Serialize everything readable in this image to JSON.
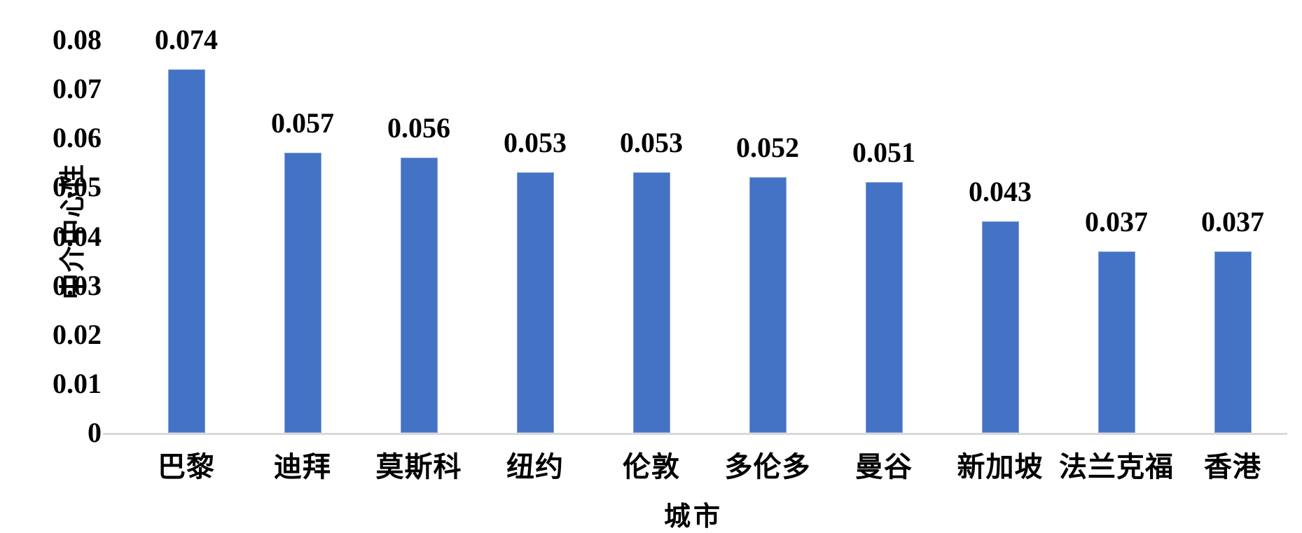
{
  "chart_data": {
    "type": "bar",
    "title": "",
    "categories": [
      "巴黎",
      "迪拜",
      "莫斯科",
      "纽约",
      "伦敦",
      "多伦多",
      "曼谷",
      "新加坡",
      "法兰克福",
      "香港"
    ],
    "values": [
      0.074,
      0.057,
      0.056,
      0.053,
      0.053,
      0.052,
      0.051,
      0.043,
      0.037,
      0.037
    ],
    "data_labels": [
      "0.074",
      "0.057",
      "0.056",
      "0.053",
      "0.053",
      "0.052",
      "0.051",
      "0.043",
      "0.037",
      "0.037"
    ],
    "xlabel": "城市",
    "ylabel": "中介中心性",
    "ylim": [
      0,
      0.08
    ],
    "yticks": [
      {
        "label": "0",
        "value": 0
      },
      {
        "label": "0.01",
        "value": 0.01
      },
      {
        "label": "0.02",
        "value": 0.02
      },
      {
        "label": "0.03",
        "value": 0.03
      },
      {
        "label": "0.04",
        "value": 0.04
      },
      {
        "label": "0.05",
        "value": 0.05
      },
      {
        "label": "0.06",
        "value": 0.06
      },
      {
        "label": "0.07",
        "value": 0.07
      },
      {
        "label": "0.08",
        "value": 0.08
      }
    ],
    "grid": "off",
    "legend": "none",
    "colors": {
      "bar_fill": "#4472C4",
      "bar_edge": "#84a3da",
      "axis_line": "#d9d9d9",
      "text": "#000000"
    }
  }
}
